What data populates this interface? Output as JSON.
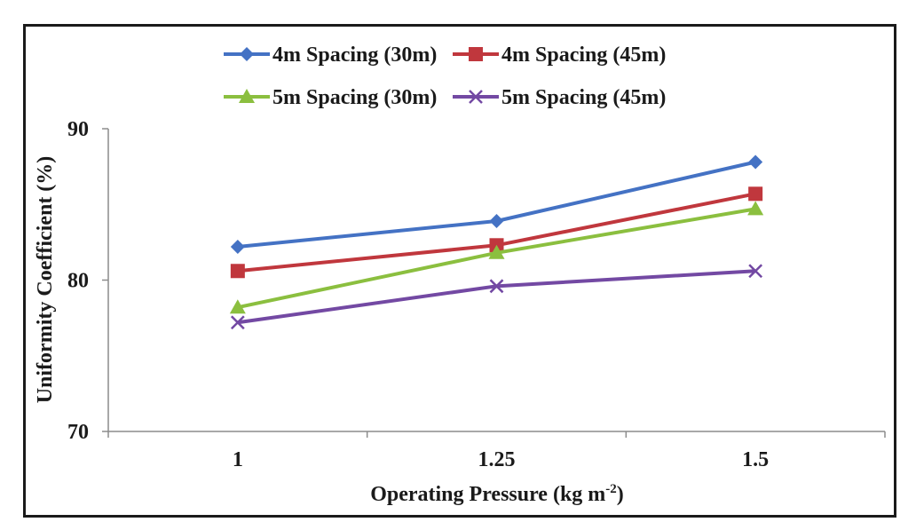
{
  "chart_data": {
    "type": "line",
    "title": "",
    "xlabel": "Operating Pressure (kg m",
    "xlabel_sup": "-2",
    "xlabel_close": ")",
    "ylabel": "Uniformity Coefficient (%)",
    "categories": [
      "1",
      "1.25",
      "1.5"
    ],
    "ylim": [
      70,
      90
    ],
    "yticks": [
      "70",
      "80",
      "90"
    ],
    "ytick_values": [
      70,
      80,
      90
    ],
    "grid": false,
    "legend_position": "top",
    "series": [
      {
        "name": "4m Spacing (30m)",
        "color": "#4472c4",
        "marker": "diamond",
        "values": [
          82.2,
          83.9,
          87.8
        ]
      },
      {
        "name": "4m Spacing (45m)",
        "color": "#c0373d",
        "marker": "square",
        "values": [
          80.6,
          82.3,
          85.7
        ]
      },
      {
        "name": "5m Spacing (30m)",
        "color": "#8bbf3f",
        "marker": "triangle",
        "values": [
          78.2,
          81.8,
          84.7
        ]
      },
      {
        "name": "5m Spacing (45m)",
        "color": "#7349a3",
        "marker": "x",
        "values": [
          77.2,
          79.6,
          80.6
        ]
      }
    ]
  }
}
